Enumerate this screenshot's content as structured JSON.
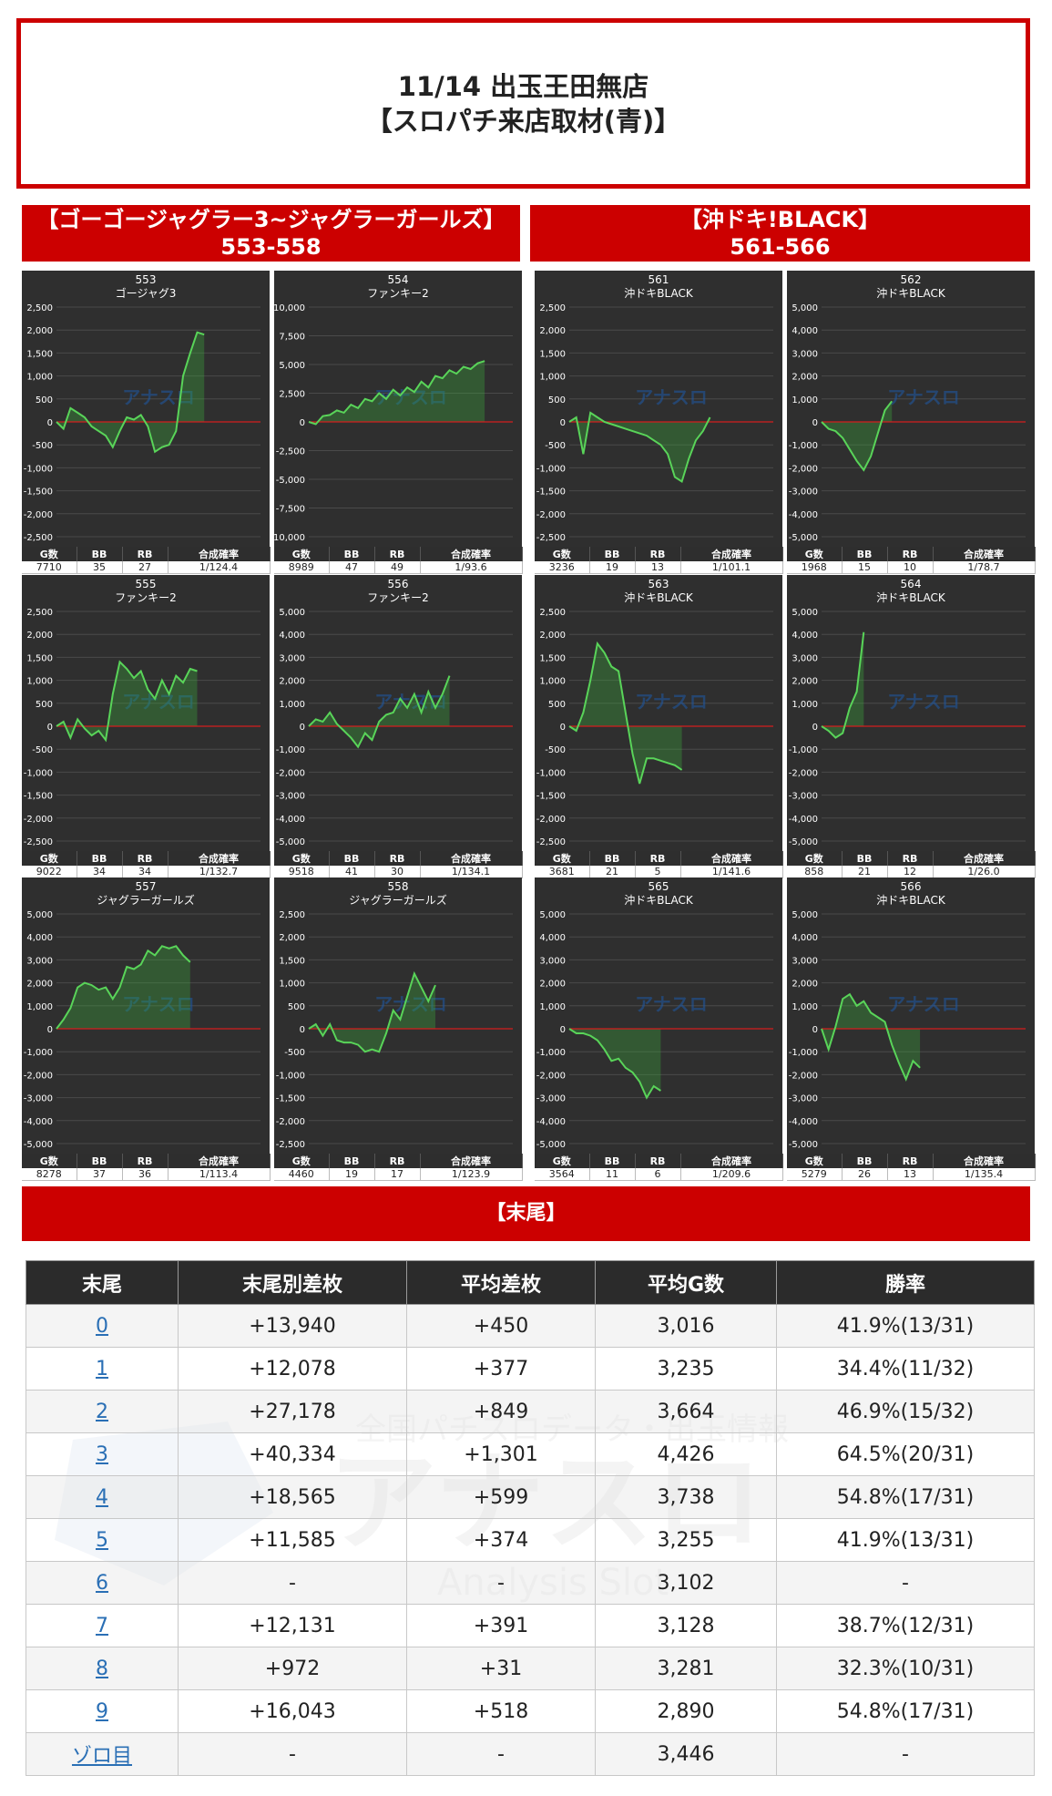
{
  "header": {
    "title_line1": "11/14 出玉王田無店",
    "title_line2": "【スロパチ来店取材(青)】"
  },
  "groups": [
    {
      "name": "【ゴーゴージャグラー3~ジャグラーガールズ】",
      "range": "553-558"
    },
    {
      "name": "【沖ドキ!BLACK】",
      "range": "561-566"
    }
  ],
  "stat_labels": [
    "G数",
    "BB",
    "RB",
    "合成確率"
  ],
  "watermark": {
    "brand": "アナスロ",
    "sub": "Analysis Slot",
    "tagline": "全国パチスロデータ・出玉情報"
  },
  "chart_data": [
    {
      "type": "line",
      "id": "553",
      "machine": "ゴージャグ3",
      "ylim": [
        -2500,
        2500
      ],
      "ytick_labels": [
        "2,500",
        "2,000",
        "1,500",
        "1,000",
        "500",
        "0",
        "-500",
        "-1,000",
        "-1,500",
        "-2,000",
        "-2,500"
      ],
      "x": [
        0,
        1,
        2,
        3,
        4,
        5,
        6,
        7,
        8,
        9,
        10,
        11,
        12,
        13,
        14,
        15,
        16,
        17,
        18,
        19,
        20,
        21,
        22,
        23,
        24,
        25,
        26,
        27,
        28,
        29
      ],
      "y": [
        0,
        -150,
        300,
        200,
        100,
        -100,
        -200,
        -300,
        -550,
        -200,
        100,
        50,
        150,
        -100,
        -650,
        -550,
        -500,
        -200,
        1000,
        1500,
        1950,
        1900,
        1900,
        1900,
        1900,
        1900,
        1900,
        1900,
        1900,
        1900
      ],
      "stats": {
        "g": "7710",
        "bb": "35",
        "rb": "27",
        "prob": "1/124.4"
      }
    },
    {
      "type": "line",
      "id": "554",
      "machine": "ファンキー2",
      "ylim": [
        -10000,
        10000
      ],
      "ytick_labels": [
        "10,000",
        "7,500",
        "5,000",
        "2,500",
        "0",
        "-2,500",
        "-5,000",
        "-7,500",
        "-10,000"
      ],
      "x": [
        0,
        1,
        2,
        3,
        4,
        5,
        6,
        7,
        8,
        9,
        10,
        11,
        12,
        13,
        14,
        15,
        16,
        17,
        18,
        19,
        20,
        21,
        22,
        23,
        24,
        25,
        26,
        27,
        28,
        29
      ],
      "y": [
        0,
        -200,
        500,
        600,
        1000,
        800,
        1500,
        1200,
        2000,
        1800,
        2500,
        2000,
        2800,
        2300,
        3000,
        2600,
        3500,
        3000,
        4000,
        3800,
        4500,
        4200,
        4800,
        4600,
        5100,
        5300,
        5300,
        5300,
        5300,
        5300
      ],
      "stats": {
        "g": "8989",
        "bb": "47",
        "rb": "49",
        "prob": "1/93.6"
      }
    },
    {
      "type": "line",
      "id": "561",
      "machine": "沖ドキBLACK",
      "ylim": [
        -2500,
        2500
      ],
      "ytick_labels": [
        "2,500",
        "2,000",
        "1,500",
        "1,000",
        "500",
        "0",
        "-500",
        "-1,000",
        "-1,500",
        "-2,000",
        "-2,500"
      ],
      "x": [
        0,
        1,
        2,
        3,
        4,
        5,
        6,
        7,
        8,
        9,
        10,
        11,
        12,
        13,
        14,
        15,
        16,
        17,
        18,
        19,
        20,
        21,
        22,
        23,
        24,
        25,
        26,
        27,
        28,
        29
      ],
      "y": [
        0,
        100,
        -700,
        200,
        100,
        0,
        -50,
        -100,
        -150,
        -200,
        -250,
        -300,
        -400,
        -500,
        -700,
        -1200,
        -1300,
        -800,
        -400,
        -200,
        100,
        100,
        100,
        100,
        100,
        100,
        100,
        100,
        100,
        100
      ],
      "stats": {
        "g": "3236",
        "bb": "19",
        "rb": "13",
        "prob": "1/101.1"
      }
    },
    {
      "type": "line",
      "id": "562",
      "machine": "沖ドキBLACK",
      "ylim": [
        -5000,
        5000
      ],
      "ytick_labels": [
        "5,000",
        "4,000",
        "3,000",
        "2,000",
        "1,000",
        "0",
        "-1,000",
        "-2,000",
        "-3,000",
        "-4,000",
        "-5,000"
      ],
      "x": [
        0,
        1,
        2,
        3,
        4,
        5,
        6,
        7,
        8,
        9,
        10,
        11,
        12,
        13,
        14,
        15,
        16,
        17,
        18,
        19,
        20,
        21,
        22,
        23,
        24,
        25,
        26,
        27,
        28,
        29
      ],
      "y": [
        0,
        -300,
        -400,
        -700,
        -1200,
        -1700,
        -2100,
        -1500,
        -500,
        500,
        900,
        900,
        900,
        900,
        900,
        900,
        900,
        900,
        900,
        900,
        900,
        900,
        900,
        900,
        900,
        900,
        900,
        900,
        900,
        900
      ],
      "stats": {
        "g": "1968",
        "bb": "15",
        "rb": "10",
        "prob": "1/78.7"
      }
    },
    {
      "type": "line",
      "id": "555",
      "machine": "ファンキー2",
      "ylim": [
        -2500,
        2500
      ],
      "ytick_labels": [
        "2,500",
        "2,000",
        "1,500",
        "1,000",
        "500",
        "0",
        "-500",
        "-1,000",
        "-1,500",
        "-2,000",
        "-2,500"
      ],
      "x": [
        0,
        1,
        2,
        3,
        4,
        5,
        6,
        7,
        8,
        9,
        10,
        11,
        12,
        13,
        14,
        15,
        16,
        17,
        18,
        19,
        20,
        21,
        22,
        23,
        24,
        25,
        26,
        27,
        28,
        29
      ],
      "y": [
        0,
        100,
        -250,
        150,
        -50,
        -200,
        -100,
        -300,
        700,
        1400,
        1250,
        1050,
        1200,
        800,
        600,
        1000,
        700,
        1100,
        950,
        1250,
        1200,
        1200,
        1200,
        1200,
        1200,
        1200,
        1200,
        1200,
        1200,
        1200
      ],
      "stats": {
        "g": "9022",
        "bb": "34",
        "rb": "34",
        "prob": "1/132.7"
      }
    },
    {
      "type": "line",
      "id": "556",
      "machine": "ファンキー2",
      "ylim": [
        -5000,
        5000
      ],
      "ytick_labels": [
        "5,000",
        "4,000",
        "3,000",
        "2,000",
        "1,000",
        "0",
        "-1,000",
        "-2,000",
        "-3,000",
        "-4,000",
        "-5,000"
      ],
      "x": [
        0,
        1,
        2,
        3,
        4,
        5,
        6,
        7,
        8,
        9,
        10,
        11,
        12,
        13,
        14,
        15,
        16,
        17,
        18,
        19,
        20,
        21,
        22,
        23,
        24,
        25,
        26,
        27,
        28,
        29
      ],
      "y": [
        0,
        300,
        200,
        600,
        100,
        -200,
        -500,
        -900,
        -300,
        -600,
        200,
        500,
        600,
        1200,
        800,
        1400,
        600,
        1500,
        800,
        1400,
        2200,
        2200,
        2200,
        2200,
        2200,
        2200,
        2200,
        2200,
        2200,
        2200
      ],
      "stats": {
        "g": "9518",
        "bb": "41",
        "rb": "30",
        "prob": "1/134.1"
      }
    },
    {
      "type": "line",
      "id": "563",
      "machine": "沖ドキBLACK",
      "ylim": [
        -2500,
        2500
      ],
      "ytick_labels": [
        "2,500",
        "2,000",
        "1,500",
        "1,000",
        "500",
        "0",
        "-500",
        "-1,000",
        "-1,500",
        "-2,000",
        "-2,500"
      ],
      "x": [
        0,
        1,
        2,
        3,
        4,
        5,
        6,
        7,
        8,
        9,
        10,
        11,
        12,
        13,
        14,
        15,
        16,
        17,
        18,
        19,
        20,
        21,
        22,
        23,
        24,
        25,
        26,
        27,
        28,
        29
      ],
      "y": [
        0,
        -100,
        300,
        1000,
        1800,
        1600,
        1300,
        1200,
        300,
        -600,
        -1250,
        -700,
        -700,
        -750,
        -800,
        -850,
        -950,
        -950,
        -950,
        -950,
        -950,
        -950,
        -950,
        -950,
        -950,
        -950,
        -950,
        -950,
        -950,
        -950
      ],
      "stats": {
        "g": "3681",
        "bb": "21",
        "rb": "5",
        "prob": "1/141.6"
      }
    },
    {
      "type": "line",
      "id": "564",
      "machine": "沖ドキBLACK",
      "ylim": [
        -5000,
        5000
      ],
      "ytick_labels": [
        "5,000",
        "4,000",
        "3,000",
        "2,000",
        "1,000",
        "0",
        "-1,000",
        "-2,000",
        "-3,000",
        "-4,000",
        "-5,000"
      ],
      "x": [
        0,
        1,
        2,
        3,
        4,
        5,
        6,
        7,
        8,
        9,
        10,
        11,
        12,
        13,
        14,
        15,
        16,
        17,
        18,
        19,
        20,
        21,
        22,
        23,
        24,
        25,
        26,
        27,
        28,
        29
      ],
      "y": [
        0,
        -200,
        -500,
        -300,
        800,
        1500,
        4100,
        4100,
        4100,
        4100,
        4100,
        4100,
        4100,
        4100,
        4100,
        4100,
        4100,
        4100,
        4100,
        4100,
        4100,
        4100,
        4100,
        4100,
        4100,
        4100,
        4100,
        4100,
        4100,
        4100
      ],
      "stats": {
        "g": "858",
        "bb": "21",
        "rb": "12",
        "prob": "1/26.0"
      }
    },
    {
      "type": "line",
      "id": "557",
      "machine": "ジャグラーガールズ",
      "ylim": [
        -5000,
        5000
      ],
      "ytick_labels": [
        "5,000",
        "4,000",
        "3,000",
        "2,000",
        "1,000",
        "0",
        "-1,000",
        "-2,000",
        "-3,000",
        "-4,000",
        "-5,000"
      ],
      "x": [
        0,
        1,
        2,
        3,
        4,
        5,
        6,
        7,
        8,
        9,
        10,
        11,
        12,
        13,
        14,
        15,
        16,
        17,
        18,
        19,
        20,
        21,
        22,
        23,
        24,
        25,
        26,
        27,
        28,
        29
      ],
      "y": [
        0,
        400,
        900,
        1800,
        2000,
        1900,
        1700,
        1800,
        1300,
        1800,
        2700,
        2600,
        2800,
        3400,
        3200,
        3600,
        3500,
        3600,
        3200,
        2900,
        2900,
        2900,
        2900,
        2900,
        2900,
        2900,
        2900,
        2900,
        2900,
        2900
      ],
      "stats": {
        "g": "8278",
        "bb": "37",
        "rb": "36",
        "prob": "1/113.4"
      }
    },
    {
      "type": "line",
      "id": "558",
      "machine": "ジャグラーガールズ",
      "ylim": [
        -2500,
        2500
      ],
      "ytick_labels": [
        "2,500",
        "2,000",
        "1,500",
        "1,000",
        "500",
        "0",
        "-500",
        "-1,000",
        "-1,500",
        "-2,000",
        "-2,500"
      ],
      "x": [
        0,
        1,
        2,
        3,
        4,
        5,
        6,
        7,
        8,
        9,
        10,
        11,
        12,
        13,
        14,
        15,
        16,
        17,
        18,
        19,
        20,
        21,
        22,
        23,
        24,
        25,
        26,
        27,
        28,
        29
      ],
      "y": [
        0,
        100,
        -150,
        100,
        -250,
        -300,
        -300,
        -350,
        -500,
        -450,
        -500,
        -100,
        400,
        200,
        700,
        1200,
        900,
        600,
        950,
        950,
        950,
        950,
        950,
        950,
        950,
        950,
        950,
        950,
        950,
        950
      ],
      "stats": {
        "g": "4460",
        "bb": "19",
        "rb": "17",
        "prob": "1/123.9"
      }
    },
    {
      "type": "line",
      "id": "565",
      "machine": "沖ドキBLACK",
      "ylim": [
        -5000,
        5000
      ],
      "ytick_labels": [
        "5,000",
        "4,000",
        "3,000",
        "2,000",
        "1,000",
        "0",
        "-1,000",
        "-2,000",
        "-3,000",
        "-4,000",
        "-5,000"
      ],
      "x": [
        0,
        1,
        2,
        3,
        4,
        5,
        6,
        7,
        8,
        9,
        10,
        11,
        12,
        13,
        14,
        15,
        16,
        17,
        18,
        19,
        20,
        21,
        22,
        23,
        24,
        25,
        26,
        27,
        28,
        29
      ],
      "y": [
        0,
        -200,
        -200,
        -300,
        -500,
        -900,
        -1400,
        -1300,
        -1700,
        -1900,
        -2300,
        -3000,
        -2500,
        -2700,
        -2700,
        -2700,
        -2700,
        -2700,
        -2700,
        -2700,
        -2700,
        -2700,
        -2700,
        -2700,
        -2700,
        -2700,
        -2700,
        -2700,
        -2700,
        -2700
      ],
      "stats": {
        "g": "3564",
        "bb": "11",
        "rb": "6",
        "prob": "1/209.6"
      }
    },
    {
      "type": "line",
      "id": "566",
      "machine": "沖ドキBLACK",
      "ylim": [
        -5000,
        5000
      ],
      "ytick_labels": [
        "5,000",
        "4,000",
        "3,000",
        "2,000",
        "1,000",
        "0",
        "-1,000",
        "-2,000",
        "-3,000",
        "-4,000",
        "-5,000"
      ],
      "x": [
        0,
        1,
        2,
        3,
        4,
        5,
        6,
        7,
        8,
        9,
        10,
        11,
        12,
        13,
        14,
        15,
        16,
        17,
        18,
        19,
        20,
        21,
        22,
        23,
        24,
        25,
        26,
        27,
        28,
        29
      ],
      "y": [
        0,
        -900,
        100,
        1300,
        1500,
        1000,
        1200,
        700,
        500,
        300,
        -700,
        -1500,
        -2200,
        -1400,
        -1700,
        -1700,
        -1700,
        -1700,
        -1700,
        -1700,
        -1700,
        -1700,
        -1700,
        -1700,
        -1700,
        -1700,
        -1700,
        -1700,
        -1700,
        -1700
      ],
      "stats": {
        "g": "5279",
        "bb": "26",
        "rb": "13",
        "prob": "1/135.4"
      }
    }
  ],
  "suffix": {
    "title": "【末尾】",
    "columns": [
      "末尾",
      "末尾別差枚",
      "平均差枚",
      "平均G数",
      "勝率"
    ],
    "rows": [
      [
        "0",
        "+13,940",
        "+450",
        "3,016",
        "41.9%(13/31)"
      ],
      [
        "1",
        "+12,078",
        "+377",
        "3,235",
        "34.4%(11/32)"
      ],
      [
        "2",
        "+27,178",
        "+849",
        "3,664",
        "46.9%(15/32)"
      ],
      [
        "3",
        "+40,334",
        "+1,301",
        "4,426",
        "64.5%(20/31)"
      ],
      [
        "4",
        "+18,565",
        "+599",
        "3,738",
        "54.8%(17/31)"
      ],
      [
        "5",
        "+11,585",
        "+374",
        "3,255",
        "41.9%(13/31)"
      ],
      [
        "6",
        "-",
        "-",
        "3,102",
        "-"
      ],
      [
        "7",
        "+12,131",
        "+391",
        "3,128",
        "38.7%(12/31)"
      ],
      [
        "8",
        "+972",
        "+31",
        "3,281",
        "32.3%(10/31)"
      ],
      [
        "9",
        "+16,043",
        "+518",
        "2,890",
        "54.8%(17/31)"
      ],
      [
        "ゾロ目",
        "-",
        "-",
        "3,446",
        "-"
      ]
    ]
  }
}
